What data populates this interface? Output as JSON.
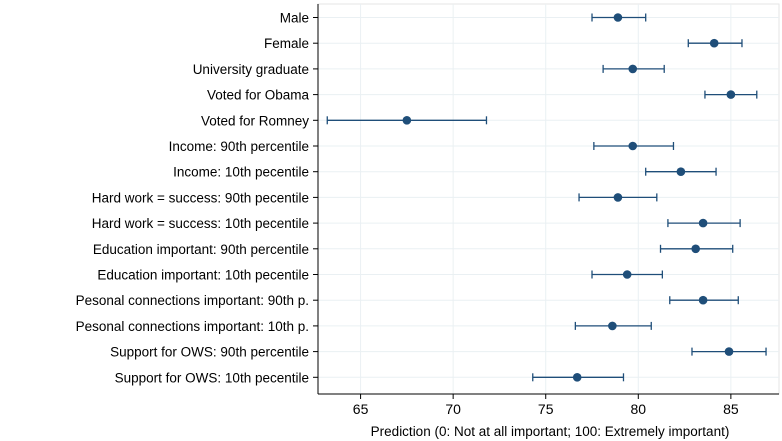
{
  "chart_data": {
    "type": "dot-with-error-bars",
    "orientation": "horizontal",
    "xlabel": "Prediction (0: Not at all important; 100: Extremely important)",
    "xlim": [
      62.7,
      87.6
    ],
    "xticks": [
      65,
      70,
      75,
      80,
      85
    ],
    "grid": true,
    "marker_color": "#1f4e79",
    "categories": [
      "Male",
      "Female",
      "University graduate",
      "Voted for Obama",
      "Voted for Romney",
      "Income: 90th percentile",
      "Income: 10th pecentile",
      "Hard work = success: 90th pecentile",
      "Hard work = success: 10th pecentile",
      "Education important: 90th percentile",
      "Education important: 10th pecentile",
      "Pesonal connections important: 90th p.",
      "Pesonal connections important: 10th p.",
      "Support for OWS: 90th percentile",
      "Support for OWS: 10th pecentile"
    ],
    "values": [
      78.9,
      84.1,
      79.7,
      85.0,
      67.5,
      79.7,
      82.3,
      78.9,
      83.5,
      83.1,
      79.4,
      83.5,
      78.6,
      84.9,
      76.7
    ],
    "ci_low": [
      77.5,
      82.7,
      78.1,
      83.6,
      63.2,
      77.6,
      80.4,
      76.8,
      81.6,
      81.2,
      77.5,
      81.7,
      76.6,
      82.9,
      74.3
    ],
    "ci_high": [
      80.4,
      85.6,
      81.4,
      86.4,
      71.8,
      81.9,
      84.2,
      81.0,
      85.5,
      85.1,
      81.3,
      85.4,
      80.7,
      86.9,
      79.2
    ]
  }
}
